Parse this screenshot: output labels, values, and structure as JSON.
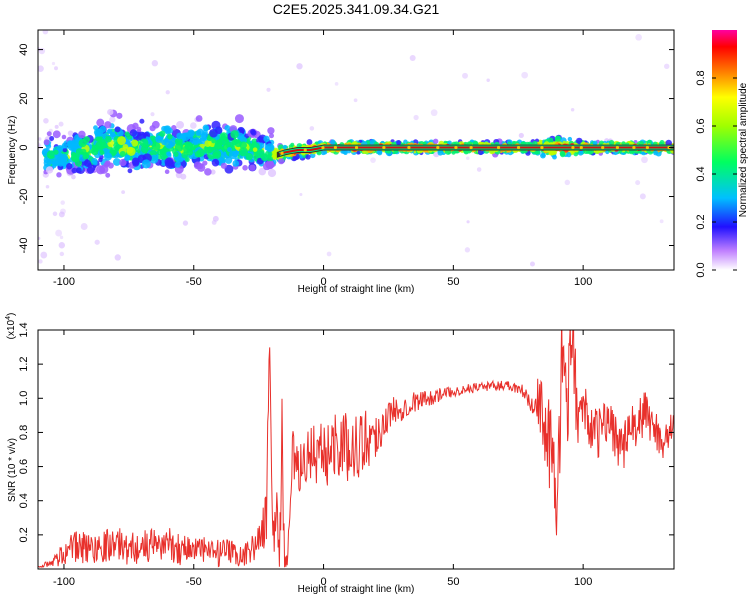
{
  "title": "C2E5.2025.341.09.34.G21",
  "colors": {
    "line": "#e8302b",
    "spec_core": "#d01010",
    "spec_high": "#ffc000",
    "spec_mid": "#00e080",
    "spec_low": "#2020ff",
    "spec_faint": "#8020ff",
    "ribbon": "#303030"
  },
  "chart_data": [
    {
      "type": "heatmap",
      "xlabel": "Height of straight line (km)",
      "ylabel": "Frequency (Hz)",
      "xlim": [
        -110,
        135
      ],
      "ylim": [
        -50,
        48
      ],
      "xticks": [
        -100,
        -50,
        0,
        50,
        100
      ],
      "yticks": [
        -40,
        -20,
        0,
        20,
        40
      ],
      "grid": false,
      "colorbar": {
        "label": "Normalized spectral amplitude",
        "ticks": [
          0.0,
          0.2,
          0.4,
          0.6,
          0.8
        ],
        "range": [
          0,
          1
        ],
        "colormap": "rainbow"
      },
      "ridge": {
        "x": [
          -105,
          -100,
          -95,
          -90,
          -85,
          -80,
          -75,
          -70,
          -65,
          -60,
          -55,
          -50,
          -45,
          -40,
          -35,
          -30,
          -25,
          -20,
          -18,
          -15,
          -10,
          -5,
          0,
          5,
          10,
          20,
          40,
          60,
          80,
          90,
          100,
          120,
          135
        ],
        "freq": [
          -3,
          -4,
          -2,
          -1,
          1,
          2,
          0,
          1,
          0,
          1,
          -1,
          0,
          1,
          0,
          1,
          0,
          -1,
          -2,
          -3,
          -2,
          -1,
          -1,
          0,
          0,
          0,
          0,
          0,
          0,
          0,
          0,
          0,
          0,
          0
        ],
        "amplitude": [
          0.5,
          0.55,
          0.55,
          0.6,
          0.55,
          0.6,
          0.6,
          0.55,
          0.6,
          0.55,
          0.6,
          0.55,
          0.55,
          0.6,
          0.55,
          0.6,
          0.55,
          0.5,
          0.9,
          0.9,
          0.95,
          0.95,
          0.95,
          0.95,
          0.95,
          0.95,
          0.95,
          0.95,
          0.95,
          0.95,
          0.95,
          0.95,
          0.95
        ],
        "spread_hz": [
          5,
          5,
          6,
          6,
          7,
          7,
          6,
          6,
          6,
          6,
          6,
          6,
          6,
          6,
          6,
          6,
          5,
          5,
          2,
          2,
          2,
          2,
          1.5,
          1.5,
          1.5,
          1.5,
          1.5,
          1.5,
          1.5,
          3,
          1.5,
          1.5,
          1.5
        ]
      }
    },
    {
      "type": "line",
      "xlabel": "Height of straight line (km)",
      "ylabel": "SNR (10 * v/v)",
      "multiplier_label": "(x10",
      "multiplier_exp": "4",
      "xlim": [
        -110,
        135
      ],
      "ylim": [
        0,
        1.4
      ],
      "xticks": [
        -100,
        -50,
        0,
        50,
        100
      ],
      "yticks": [
        0.2,
        0.4,
        0.6,
        0.8,
        1.0,
        1.2,
        1.4
      ],
      "grid": false,
      "series": [
        {
          "x": [
            -110,
            -105,
            -100,
            -95,
            -90,
            -85,
            -80,
            -75,
            -70,
            -65,
            -60,
            -55,
            -50,
            -45,
            -40,
            -35,
            -30,
            -28,
            -25,
            -22,
            -21,
            -20,
            -19,
            -18,
            -17,
            -16,
            -15,
            -14,
            -12,
            -10,
            -5,
            0,
            5,
            10,
            15,
            20,
            25,
            30,
            35,
            40,
            45,
            50,
            55,
            60,
            65,
            70,
            75,
            80,
            85,
            88,
            90,
            92,
            94,
            96,
            98,
            100,
            105,
            110,
            115,
            120,
            125,
            130,
            135
          ],
          "y": [
            0.02,
            0.03,
            0.1,
            0.13,
            0.12,
            0.14,
            0.15,
            0.12,
            0.13,
            0.14,
            0.15,
            0.12,
            0.12,
            0.1,
            0.09,
            0.09,
            0.08,
            0.12,
            0.16,
            0.3,
            1.34,
            0.5,
            0.2,
            0.35,
            0.15,
            0.7,
            0.05,
            0.03,
            0.7,
            0.55,
            0.7,
            0.65,
            0.75,
            0.7,
            0.75,
            0.78,
            0.9,
            0.95,
            0.98,
            1.0,
            1.02,
            1.04,
            1.05,
            1.07,
            1.07,
            1.08,
            1.06,
            1.02,
            0.9,
            0.6,
            0.4,
            1.3,
            0.95,
            1.38,
            0.85,
            0.95,
            0.78,
            0.88,
            0.7,
            0.85,
            0.9,
            0.75,
            0.82
          ],
          "noise": [
            0.01,
            0.02,
            0.08,
            0.1,
            0.1,
            0.1,
            0.1,
            0.1,
            0.1,
            0.1,
            0.1,
            0.1,
            0.1,
            0.08,
            0.08,
            0.08,
            0.08,
            0.08,
            0.1,
            0.15,
            0.2,
            0.3,
            0.2,
            0.2,
            0.2,
            0.3,
            0.05,
            0.05,
            0.15,
            0.15,
            0.18,
            0.2,
            0.2,
            0.2,
            0.2,
            0.15,
            0.1,
            0.08,
            0.06,
            0.05,
            0.04,
            0.03,
            0.03,
            0.03,
            0.03,
            0.03,
            0.04,
            0.1,
            0.25,
            0.3,
            0.3,
            0.3,
            0.25,
            0.3,
            0.2,
            0.15,
            0.15,
            0.15,
            0.15,
            0.15,
            0.15,
            0.12,
            0.1
          ]
        }
      ]
    }
  ]
}
